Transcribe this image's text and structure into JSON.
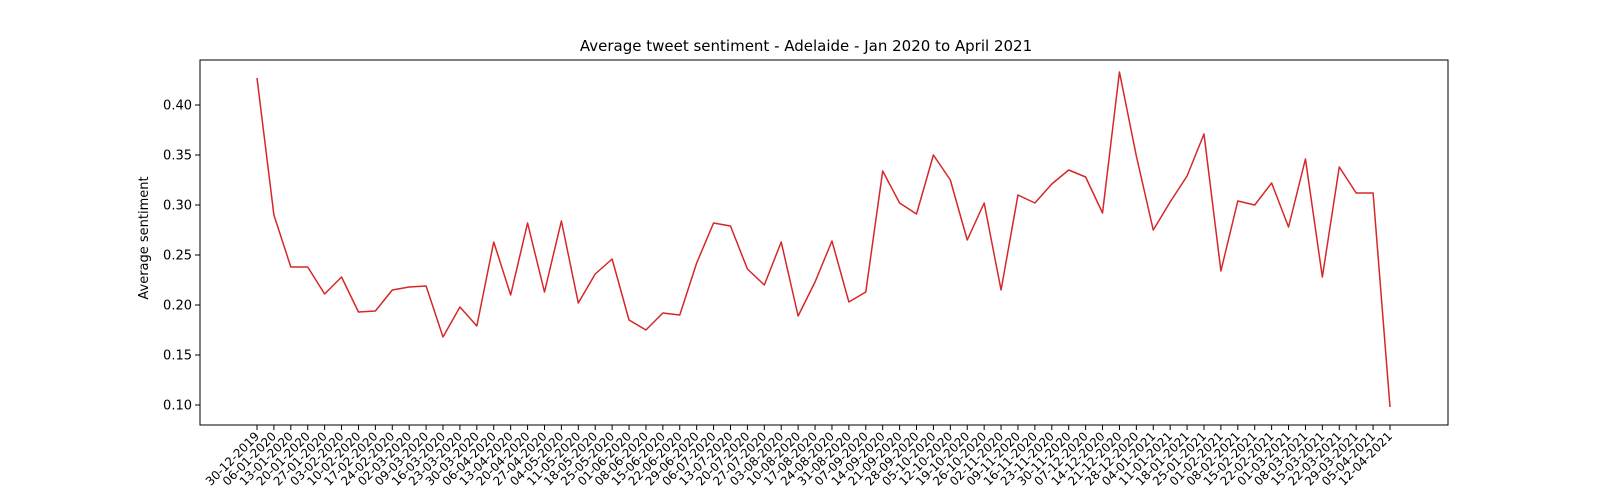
{
  "chart_data": {
    "type": "line",
    "title": "Average tweet sentiment - Adelaide - Jan 2020 to April 2021",
    "xlabel": "",
    "ylabel": "Average sentiment",
    "ylim": [
      0.08,
      0.445
    ],
    "yticks": [
      0.1,
      0.15,
      0.2,
      0.25,
      0.3,
      0.35,
      0.4
    ],
    "grid": false,
    "line_color": "#d62728",
    "x": [
      "30-12-2019",
      "06-01-2020",
      "13-01-2020",
      "20-01-2020",
      "27-01-2020",
      "03-02-2020",
      "10-02-2020",
      "17-02-2020",
      "24-02-2020",
      "02-03-2020",
      "09-03-2020",
      "16-03-2020",
      "23-03-2020",
      "30-03-2020",
      "06-04-2020",
      "13-04-2020",
      "20-04-2020",
      "27-04-2020",
      "04-05-2020",
      "11-05-2020",
      "18-05-2020",
      "25-05-2020",
      "01-06-2020",
      "08-06-2020",
      "15-06-2020",
      "22-06-2020",
      "29-06-2020",
      "06-07-2020",
      "13-07-2020",
      "20-07-2020",
      "27-07-2020",
      "03-08-2020",
      "10-08-2020",
      "17-08-2020",
      "24-08-2020",
      "31-08-2020",
      "07-09-2020",
      "14-09-2020",
      "21-09-2020",
      "28-09-2020",
      "05-10-2020",
      "12-10-2020",
      "19-10-2020",
      "26-10-2020",
      "02-11-2020",
      "09-11-2020",
      "16-11-2020",
      "23-11-2020",
      "30-11-2020",
      "07-12-2020",
      "14-12-2020",
      "21-12-2020",
      "28-12-2020",
      "04-01-2021",
      "11-01-2021",
      "18-01-2021",
      "25-01-2021",
      "01-02-2021",
      "08-02-2021",
      "15-02-2021",
      "22-02-2021",
      "01-03-2021",
      "08-03-2021",
      "15-03-2021",
      "22-03-2021",
      "29-03-2021",
      "05-04-2021",
      "12-04-2021"
    ],
    "series": [
      {
        "name": "",
        "values": [
          0.427,
          0.29,
          0.238,
          0.238,
          0.211,
          0.228,
          0.193,
          0.194,
          0.215,
          0.218,
          0.219,
          0.168,
          0.198,
          0.179,
          0.263,
          0.21,
          0.282,
          0.213,
          0.284,
          0.202,
          0.231,
          0.246,
          0.185,
          0.175,
          0.192,
          0.19,
          0.242,
          0.282,
          0.279,
          0.236,
          0.22,
          0.263,
          0.189,
          0.223,
          0.264,
          0.203,
          0.213,
          0.334,
          0.302,
          0.291,
          0.35,
          0.325,
          0.265,
          0.302,
          0.215,
          0.31,
          0.302,
          0.321,
          0.335,
          0.328,
          0.292,
          0.433,
          0.349,
          0.275,
          0.303,
          0.329,
          0.371,
          0.234,
          0.304,
          0.3,
          0.322,
          0.278,
          0.346,
          0.228,
          0.338,
          0.312,
          0.312,
          0.098
        ]
      }
    ]
  }
}
